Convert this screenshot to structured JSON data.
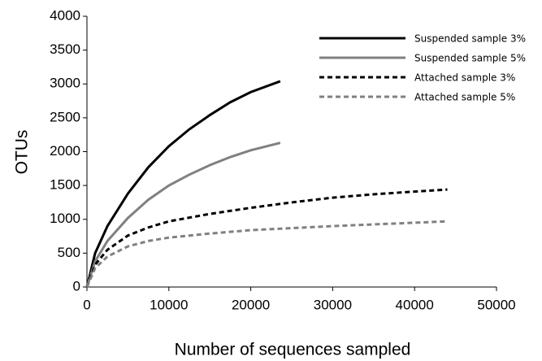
{
  "chart_data": {
    "type": "line",
    "xlabel": "Number of sequences sampled",
    "ylabel": "OTUs",
    "xlim": [
      0,
      50000
    ],
    "xticks": [
      0,
      10000,
      20000,
      30000,
      40000,
      50000
    ],
    "ylim": [
      0,
      4000
    ],
    "yticks": [
      0,
      500,
      1000,
      1500,
      2000,
      2500,
      3000,
      3500,
      4000
    ],
    "grid": false,
    "legend": "upper right",
    "series": [
      {
        "name": "Suspended sample 3%",
        "color": "#000000",
        "dash": "solid",
        "x": [
          0,
          1000,
          2500,
          5000,
          7500,
          10000,
          12500,
          15000,
          17500,
          20000,
          23600
        ],
        "values": [
          0,
          500,
          900,
          1380,
          1770,
          2080,
          2330,
          2540,
          2730,
          2880,
          3040
        ]
      },
      {
        "name": "Suspended sample 5%",
        "color": "#808080",
        "dash": "solid",
        "x": [
          0,
          1000,
          2500,
          5000,
          7500,
          10000,
          12500,
          15000,
          17500,
          20000,
          23600
        ],
        "values": [
          0,
          380,
          680,
          1020,
          1290,
          1500,
          1660,
          1800,
          1920,
          2020,
          2130
        ]
      },
      {
        "name": "Attached sample 3%",
        "color": "#000000",
        "dash": "dashed",
        "x": [
          0,
          1000,
          2500,
          5000,
          7500,
          10000,
          15000,
          20000,
          25000,
          30000,
          35000,
          40000,
          44000
        ],
        "values": [
          0,
          330,
          550,
          760,
          880,
          970,
          1080,
          1170,
          1250,
          1320,
          1370,
          1410,
          1440
        ]
      },
      {
        "name": "Attached sample 5%",
        "color": "#808080",
        "dash": "dashed",
        "x": [
          0,
          1000,
          2500,
          5000,
          7500,
          10000,
          15000,
          20000,
          25000,
          30000,
          35000,
          40000,
          44000
        ],
        "values": [
          0,
          280,
          450,
          600,
          680,
          730,
          790,
          840,
          870,
          900,
          925,
          950,
          970
        ]
      }
    ]
  }
}
